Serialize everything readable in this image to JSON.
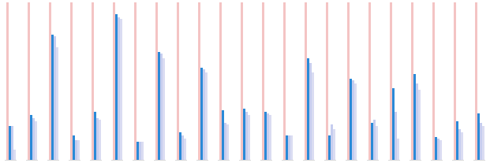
{
  "chart_data": {
    "type": "bar",
    "categories": [
      null,
      null,
      null,
      null,
      null,
      null,
      null,
      null,
      null,
      null,
      null,
      null,
      null,
      null,
      null,
      null,
      null,
      null,
      null,
      null,
      null,
      null,
      null
    ],
    "series": [
      {
        "color": "#f4c4c4",
        "values": [
          100,
          100,
          100,
          100,
          100,
          100,
          100,
          100,
          100,
          100,
          100,
          100,
          100,
          100,
          100,
          100,
          100,
          100,
          100,
          100,
          100,
          100,
          100
        ]
      },
      {
        "color": "#2a8ad8",
        "values": [
          21.5,
          28.5,
          79.5,
          15.5,
          30.5,
          92.5,
          11.5,
          68.5,
          17.5,
          58.5,
          31.5,
          32.5,
          30.5,
          15.5,
          64.5,
          15.5,
          51.5,
          23.5,
          45.5,
          54.5,
          14.5,
          24.5,
          29.5
        ]
      },
      {
        "color": "#c6cdef",
        "values": [
          21.5,
          26.5,
          78.5,
          12.5,
          26.5,
          90.5,
          11.5,
          67.5,
          15.5,
          57.5,
          23.5,
          30.5,
          29.5,
          15.5,
          61.5,
          22.5,
          50.5,
          25.5,
          30.5,
          48.5,
          13.5,
          19.5,
          23.5
        ]
      },
      {
        "color": "#dadcf2",
        "values": [
          6.5,
          24.5,
          71.5,
          12.5,
          25.5,
          89.5,
          11.5,
          64.5,
          13.5,
          55.5,
          22.5,
          28.5,
          28.5,
          15.5,
          55.5,
          19.5,
          48.5,
          21.5,
          13.5,
          44.5,
          12.5,
          17.5,
          21.5
        ]
      }
    ],
    "ylim": [
      0,
      100
    ],
    "yticks": [],
    "tick_labels": false,
    "grid": false
  }
}
